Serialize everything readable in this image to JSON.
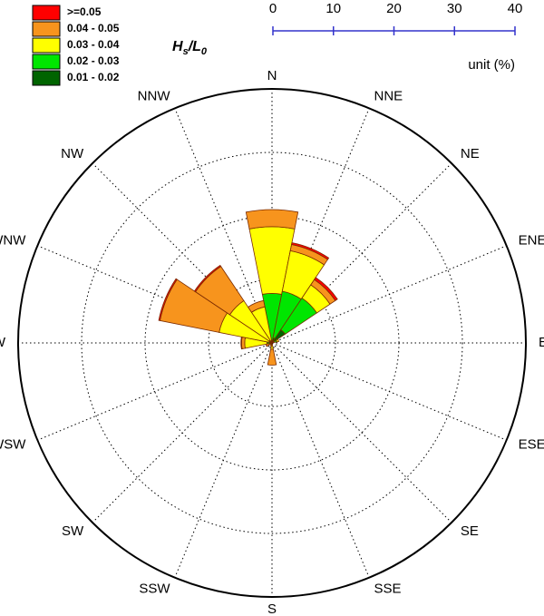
{
  "chart_data": {
    "type": "rose",
    "legend_title": [
      "H",
      "s",
      "/L",
      "0"
    ],
    "unit_label": "unit (%)",
    "directions": [
      "N",
      "NNE",
      "NE",
      "ENE",
      "E",
      "ESE",
      "SE",
      "SSE",
      "S",
      "SSW",
      "SW",
      "WSW",
      "W",
      "WNW",
      "NW",
      "NNW"
    ],
    "series": [
      {
        "name": ">=0.05",
        "color": "#ff0000",
        "values": [
          0,
          0.3,
          0.4,
          0,
          0,
          0,
          0,
          0,
          0,
          0,
          0,
          0,
          0.1,
          0.2,
          0.2,
          0
        ]
      },
      {
        "name": "0.04 - 0.05",
        "color": "#f7941d",
        "values": [
          2.7,
          1,
          1,
          0,
          0,
          0,
          0,
          0,
          2.5,
          0,
          0,
          0.5,
          0.5,
          9.5,
          6.5,
          1
        ]
      },
      {
        "name": "0.03 - 0.04",
        "color": "#ffff00",
        "values": [
          10.5,
          6.5,
          2.5,
          0.3,
          0,
          0,
          0,
          0,
          0.7,
          0.5,
          0,
          0.5,
          3.5,
          8,
          7.5,
          5.5
        ]
      },
      {
        "name": "0.02 - 0.03",
        "color": "#00e600",
        "values": [
          7.5,
          7.5,
          6,
          0.5,
          0,
          0,
          0,
          0,
          0.3,
          0,
          0,
          0,
          0.5,
          0.5,
          0.5,
          0.3
        ]
      },
      {
        "name": "0.01 - 0.02",
        "color": "#006400",
        "values": [
          0.3,
          0.8,
          2.5,
          0.3,
          0,
          0,
          0,
          0,
          0,
          0,
          0,
          0,
          0.3,
          0,
          0,
          0
        ]
      }
    ],
    "rlim": [
      0,
      40
    ],
    "rticks": [
      0,
      10,
      20,
      30,
      40
    ]
  }
}
